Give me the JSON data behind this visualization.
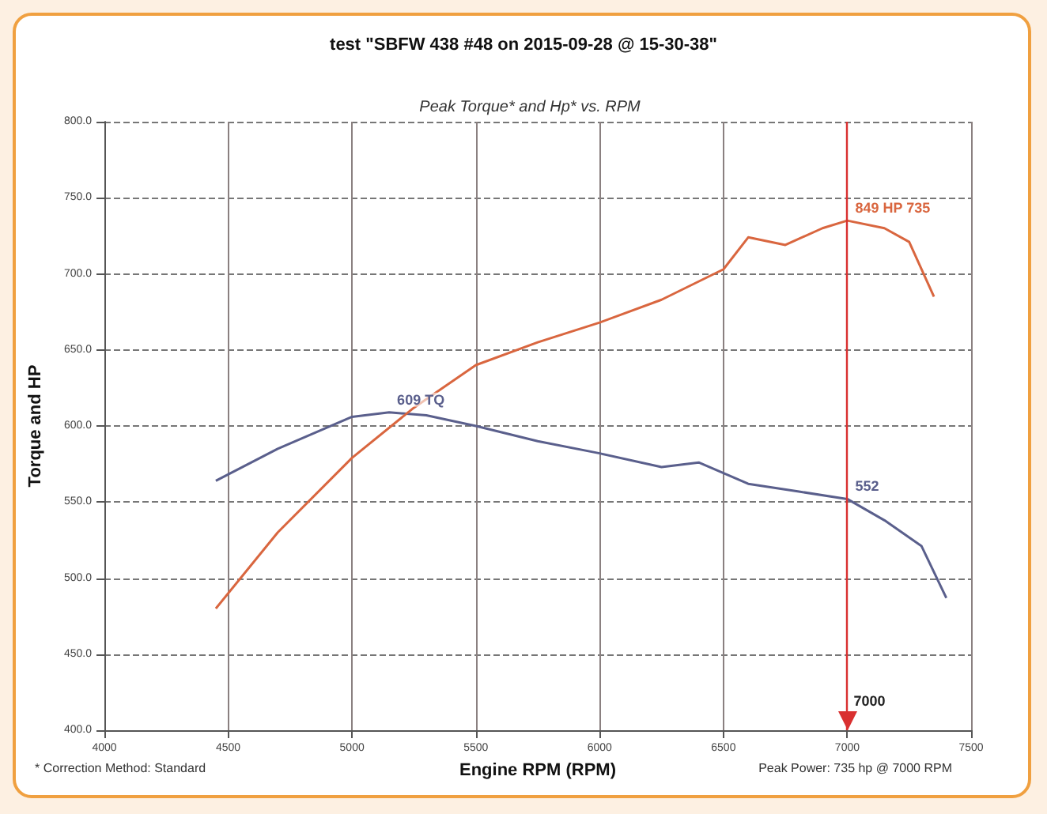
{
  "chart_data": {
    "type": "line",
    "title": "test \"SBFW 438 #48 on 2015-09-28 @ 15-30-38\"",
    "subtitle": "Peak Torque* and Hp* vs. RPM",
    "xlabel": "Engine RPM (RPM)",
    "ylabel": "Torque and HP",
    "xlim": [
      4000,
      7500
    ],
    "xticks": [
      4000,
      4500,
      5000,
      5500,
      6000,
      6500,
      7000,
      7500
    ],
    "ylim": [
      400,
      800
    ],
    "yticks": [
      {
        "value": 400,
        "label": "400.0"
      },
      {
        "value": 450,
        "label": "450.0"
      },
      {
        "value": 500,
        "label": "500.0"
      },
      {
        "value": 550,
        "label": "550.0"
      },
      {
        "value": 600,
        "label": "600.0"
      },
      {
        "value": 650,
        "label": "650.0"
      },
      {
        "value": 700,
        "label": "700.0"
      },
      {
        "value": 750,
        "label": "750.0"
      },
      {
        "value": 800,
        "label": "800.0"
      }
    ],
    "grid": true,
    "marker": "none",
    "line_style": "solid",
    "series": [
      {
        "color": "#5a5f8c",
        "x": [
          4450,
          4700,
          5000,
          5150,
          5300,
          5500,
          5750,
          6000,
          6250,
          6400,
          6600,
          6800,
          7000,
          7150,
          7300,
          7400
        ],
        "values": [
          564,
          585,
          606,
          609,
          607,
          600,
          590,
          582,
          573,
          576,
          562,
          557,
          552,
          538,
          521,
          487
        ],
        "value_labels": [
          null,
          null,
          null,
          "609 TQ",
          null,
          null,
          null,
          null,
          null,
          null,
          null,
          null,
          "552",
          null,
          null,
          null
        ]
      },
      {
        "color": "#d9663f",
        "x": [
          4450,
          4700,
          5000,
          5250,
          5500,
          5750,
          6000,
          6250,
          6500,
          6600,
          6750,
          6900,
          7000,
          7150,
          7250,
          7350
        ],
        "values": [
          480,
          530,
          579,
          612,
          640,
          655,
          668,
          683,
          703,
          724,
          719,
          730,
          735,
          730,
          721,
          685
        ],
        "value_labels": [
          null,
          null,
          null,
          null,
          null,
          null,
          null,
          null,
          null,
          null,
          null,
          null,
          "849 HP 735",
          null,
          null,
          null
        ]
      }
    ],
    "ref_lines": [
      {
        "axis": "x",
        "value": 7000,
        "label": "7000",
        "color": "#d93030"
      }
    ],
    "annotations": [
      "* Correction Method: Standard",
      "Peak Power: 735 hp @ 7000 RPM"
    ]
  }
}
